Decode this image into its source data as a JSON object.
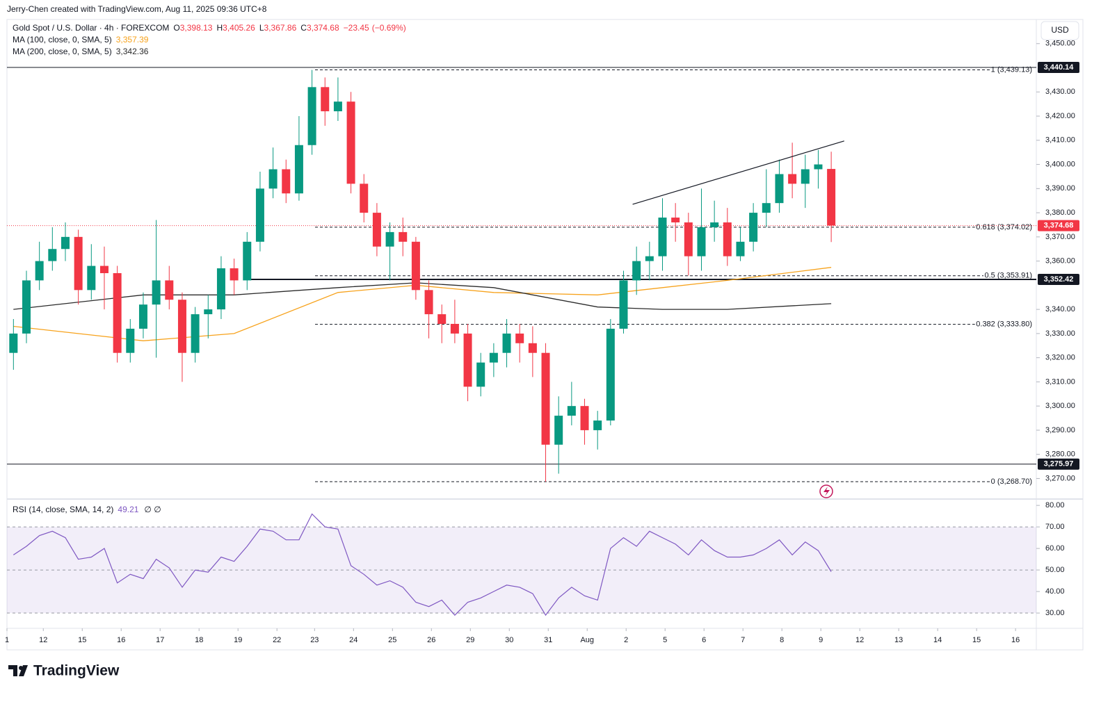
{
  "header": {
    "credit": "Jerry-Chen created with TradingView.com, Aug 11, 2025 09:36 UTC+8",
    "currency": "USD",
    "logo": "TradingView"
  },
  "chart_data": [
    {
      "type": "candlestick",
      "title": "Gold Spot / U.S. Dollar · 4h · FOREXCOM",
      "legend": [
        {
          "label": "O",
          "value": 3398.13,
          "value_label": "3,398.13"
        },
        {
          "label": "H",
          "value": 3405.26,
          "value_label": "3,405.26"
        },
        {
          "label": "L",
          "value": 3367.86,
          "value_label": "3,367.86"
        },
        {
          "label": "C",
          "value": 3374.68,
          "value_label": "3,374.68"
        }
      ],
      "change": {
        "value": -23.45,
        "label": "−23.45"
      },
      "change_pct": {
        "value": -0.69,
        "label": "(−0.69%)"
      },
      "up_color": "#089981",
      "down_color": "#f23645",
      "open": [
        3322,
        3330,
        3352,
        3360,
        3365,
        3370,
        3348,
        3358,
        3355,
        3322,
        3332,
        3342,
        3352,
        3344,
        3322,
        3338,
        3340,
        3357,
        3352,
        3368,
        3390,
        3398,
        3388,
        3408,
        3432,
        3422,
        3426,
        3392,
        3380,
        3366,
        3372,
        3368,
        3348,
        3338,
        3334,
        3330,
        3308,
        3318,
        3322,
        3330,
        3326,
        3322,
        3284,
        3296,
        3300,
        3290,
        3294,
        3332,
        3352,
        3360,
        3362,
        3378,
        3376,
        3362,
        3374,
        3376,
        3362,
        3368,
        3380,
        3384,
        3396,
        3392,
        3398,
        3398.13
      ],
      "high": [
        3336,
        3356,
        3368,
        3374,
        3376,
        3373,
        3367,
        3366,
        3358,
        3336,
        3347,
        3377,
        3358,
        3347,
        3341,
        3346,
        3362,
        3361,
        3372,
        3397,
        3407,
        3402,
        3420,
        3439.13,
        3436,
        3436,
        3430,
        3396,
        3384,
        3376,
        3378,
        3370,
        3352,
        3342,
        3344,
        3334,
        3322,
        3326,
        3336,
        3334,
        3333,
        3326,
        3304,
        3310,
        3303,
        3298,
        3336,
        3356,
        3366,
        3368,
        3386,
        3384,
        3380,
        3390,
        3385,
        3382,
        3374,
        3384,
        3398,
        3402,
        3409,
        3404,
        3406,
        3405.26
      ],
      "low": [
        3315,
        3326,
        3348,
        3356,
        3360,
        3342,
        3344,
        3340,
        3318,
        3318,
        3328,
        3320,
        3340,
        3310,
        3318,
        3328,
        3336,
        3346,
        3348,
        3364,
        3386,
        3384,
        3385,
        3404,
        3416,
        3418,
        3388,
        3376,
        3362,
        3352,
        3362,
        3344,
        3328,
        3326,
        3326,
        3302,
        3304,
        3312,
        3316,
        3318,
        3312,
        3268.7,
        3272,
        3292,
        3284,
        3282,
        3292,
        3330,
        3346,
        3352,
        3356,
        3368,
        3354,
        3356,
        3368,
        3358,
        3360,
        3364,
        3374,
        3380,
        3386,
        3382,
        3390,
        3367.86
      ],
      "close": [
        3330,
        3352,
        3360,
        3365,
        3370,
        3348,
        3358,
        3355,
        3322,
        3332,
        3342,
        3352,
        3344,
        3322,
        3338,
        3340,
        3357,
        3352,
        3368,
        3390,
        3398,
        3388,
        3408,
        3432,
        3422,
        3426,
        3392,
        3380,
        3366,
        3372,
        3368,
        3348,
        3338,
        3334,
        3330,
        3308,
        3318,
        3322,
        3330,
        3326,
        3322,
        3284,
        3296,
        3300,
        3290,
        3294,
        3332,
        3352,
        3360,
        3362,
        3378,
        3376,
        3362,
        3374,
        3376,
        3362,
        3368,
        3380,
        3384,
        3396,
        3392,
        3398,
        3400,
        3374.68
      ],
      "series": [
        {
          "name": "MA (100, close, 0, SMA, 5)",
          "color": "#f7a21b",
          "last": 3357.39,
          "last_label": "3,357.39",
          "x": [
            0,
            10,
            17,
            25,
            31,
            37,
            45,
            50,
            55,
            63
          ],
          "values": [
            3333,
            3327,
            3330,
            3347,
            3350,
            3347,
            3346,
            3349,
            3352,
            3357.39
          ]
        },
        {
          "name": "MA (200, close, 0, SMA, 5)",
          "color": "#2a2a2a",
          "last": 3342.36,
          "last_label": "3,342.36",
          "x": [
            0,
            10,
            17,
            25,
            31,
            37,
            45,
            50,
            55,
            63
          ],
          "values": [
            3340,
            3346,
            3346,
            3349,
            3351,
            3349,
            3341,
            3340,
            3340,
            3342.36
          ]
        }
      ],
      "trendline": {
        "x": [
          47.7,
          64
        ],
        "values": [
          3383.5,
          3409.7
        ]
      },
      "price_levels": [
        {
          "value": 3440.14,
          "label": "3,440.14"
        },
        {
          "value": 3352.42,
          "label": "3,352.42"
        },
        {
          "value": 3275.97,
          "label": "3,275.97"
        }
      ],
      "fib_levels": [
        {
          "value": 3439.13,
          "label": "1 (3,439.13)"
        },
        {
          "value": 3374.02,
          "label": "0.618 (3,374.02)"
        },
        {
          "value": 3353.91,
          "label": "0.5 (3,353.91)"
        },
        {
          "value": 3333.8,
          "label": "0.382 (3,333.80)"
        },
        {
          "value": 3268.7,
          "label": "0 (3,268.70)"
        }
      ],
      "current": {
        "value": 3374.68,
        "label": "3,374.68"
      },
      "xlim": [
        -0.5,
        78.8
      ],
      "ylim": [
        3261.5,
        3460
      ],
      "xticks": [
        {
          "value": -0.5,
          "label": "1"
        },
        {
          "value": 2.3,
          "label": "12"
        },
        {
          "value": 5.3,
          "label": "15"
        },
        {
          "value": 8.3,
          "label": "16"
        },
        {
          "value": 11.3,
          "label": "17"
        },
        {
          "value": 14.3,
          "label": "18"
        },
        {
          "value": 17.3,
          "label": "19"
        },
        {
          "value": 20.3,
          "label": "22"
        },
        {
          "value": 23.2,
          "label": "23"
        },
        {
          "value": 26.2,
          "label": "24"
        },
        {
          "value": 29.2,
          "label": "25"
        },
        {
          "value": 32.2,
          "label": "26"
        },
        {
          "value": 35.2,
          "label": "29"
        },
        {
          "value": 38.2,
          "label": "30"
        },
        {
          "value": 41.2,
          "label": "31"
        },
        {
          "value": 44.2,
          "label": "Aug"
        },
        {
          "value": 47.2,
          "label": "2"
        },
        {
          "value": 50.2,
          "label": "5"
        },
        {
          "value": 53.2,
          "label": "6"
        },
        {
          "value": 56.2,
          "label": "7"
        },
        {
          "value": 59.2,
          "label": "8"
        },
        {
          "value": 62.2,
          "label": "9"
        },
        {
          "value": 65.2,
          "label": "12"
        },
        {
          "value": 68.2,
          "label": "13"
        },
        {
          "value": 71.2,
          "label": "14"
        },
        {
          "value": 74.2,
          "label": "15"
        },
        {
          "value": 77.2,
          "label": "16"
        }
      ],
      "yticks": [
        {
          "value": 3450,
          "label": "3,450.00"
        },
        {
          "value": 3430,
          "label": "3,430.00"
        },
        {
          "value": 3420,
          "label": "3,420.00"
        },
        {
          "value": 3410,
          "label": "3,410.00"
        },
        {
          "value": 3400,
          "label": "3,400.00"
        },
        {
          "value": 3390,
          "label": "3,390.00"
        },
        {
          "value": 3380,
          "label": "3,380.00"
        },
        {
          "value": 3370,
          "label": "3,370.00"
        },
        {
          "value": 3360,
          "label": "3,360.00"
        },
        {
          "value": 3340,
          "label": "3,340.00"
        },
        {
          "value": 3330,
          "label": "3,330.00"
        },
        {
          "value": 3320,
          "label": "3,320.00"
        },
        {
          "value": 3310,
          "label": "3,310.00"
        },
        {
          "value": 3300,
          "label": "3,300.00"
        },
        {
          "value": 3290,
          "label": "3,290.00"
        },
        {
          "value": 3280,
          "label": "3,280.00"
        },
        {
          "value": 3270,
          "label": "3,270.00"
        }
      ]
    },
    {
      "type": "line",
      "title": "RSI (14, close, SMA, 14, 2)",
      "last": 49.21,
      "last_label": "49.21",
      "extra": "∅ ∅",
      "color": "#7e57c2",
      "values": [
        57,
        61,
        66,
        68,
        65,
        55,
        56,
        60,
        44,
        48,
        46,
        55,
        51,
        42,
        50,
        49,
        56,
        54,
        61,
        69,
        68,
        64,
        64,
        76,
        70,
        69,
        52,
        48,
        43,
        45,
        42,
        35,
        33,
        36,
        29,
        35,
        37,
        40,
        43,
        42,
        39,
        29,
        37,
        42,
        38,
        36,
        60,
        65,
        61,
        68,
        65,
        62,
        57,
        64,
        59,
        56,
        56,
        57,
        60,
        64,
        57,
        63,
        59,
        49.21
      ],
      "band": [
        30,
        70
      ],
      "levels": [
        70,
        50,
        30
      ],
      "ylim": [
        24.2,
        82.3
      ],
      "yticks": [
        {
          "value": 80,
          "label": "80.00"
        },
        {
          "value": 70,
          "label": "70.00"
        },
        {
          "value": 60,
          "label": "60.00"
        },
        {
          "value": 50,
          "label": "50.00"
        },
        {
          "value": 40,
          "label": "40.00"
        },
        {
          "value": 30,
          "label": "30.00"
        }
      ]
    }
  ]
}
